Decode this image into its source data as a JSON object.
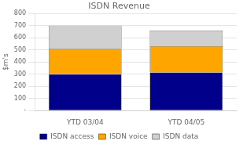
{
  "chart_data": {
    "type": "bar",
    "title": "ISDN Revenue",
    "ylabel": "$m's",
    "categories": [
      "YTD 03/04",
      "YTD 04/05"
    ],
    "series": [
      {
        "name": "ISDN access",
        "color": "#00008B",
        "values": [
          300,
          315
        ]
      },
      {
        "name": "ISDN voice",
        "color": "#FFA500",
        "values": [
          210,
          215
        ]
      },
      {
        "name": "ISDN data",
        "color": "#D0D0D0",
        "values": [
          190,
          130
        ]
      }
    ],
    "stacked": true,
    "ylim": [
      0,
      800
    ],
    "yticks": [
      {
        "value": 0,
        "label": "-"
      },
      100,
      200,
      300,
      400,
      500,
      600,
      700,
      800
    ],
    "grid": true,
    "legend": "bottom"
  }
}
